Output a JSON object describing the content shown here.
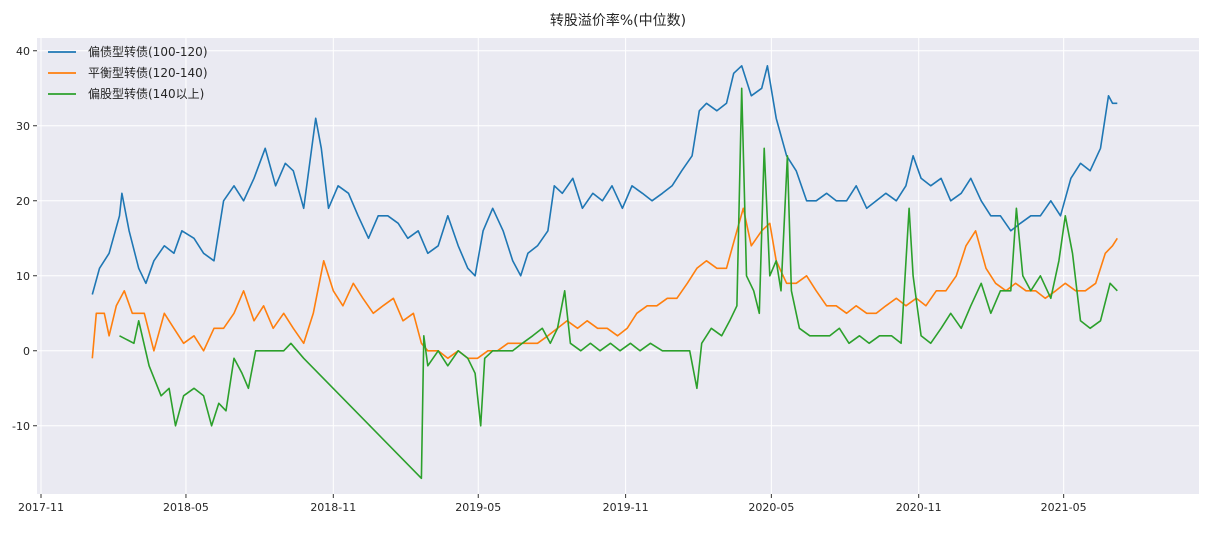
{
  "chart_data": {
    "type": "line",
    "title": "转股溢价率%(中位数)",
    "xlabel": "",
    "ylabel": "",
    "x_unit": "days since 2018-01-01",
    "xlim": [
      -66,
      1385
    ],
    "ylim": [
      -19.1,
      41.7
    ],
    "grid": true,
    "legend_position": "top-left",
    "x_ticks": [
      {
        "label": "2017-11",
        "day": -61
      },
      {
        "label": "2018-05",
        "day": 120
      },
      {
        "label": "2018-11",
        "day": 304
      },
      {
        "label": "2019-05",
        "day": 485
      },
      {
        "label": "2019-11",
        "day": 669
      },
      {
        "label": "2020-05",
        "day": 851
      },
      {
        "label": "2020-11",
        "day": 1035
      },
      {
        "label": "2021-05",
        "day": 1216
      }
    ],
    "y_ticks": [
      -10,
      0,
      10,
      20,
      30,
      40
    ],
    "series": [
      {
        "name": "偏债型转债(100-120)",
        "color": "#1f77b4",
        "points": [
          [
            3,
            7.5
          ],
          [
            12,
            11
          ],
          [
            24,
            13
          ],
          [
            37,
            18
          ],
          [
            40,
            21
          ],
          [
            49,
            16
          ],
          [
            61,
            11
          ],
          [
            70,
            9
          ],
          [
            80,
            12
          ],
          [
            93,
            14
          ],
          [
            105,
            13
          ],
          [
            115,
            16
          ],
          [
            130,
            15
          ],
          [
            142,
            13
          ],
          [
            155,
            12
          ],
          [
            167,
            20
          ],
          [
            180,
            22
          ],
          [
            192,
            20
          ],
          [
            205,
            23
          ],
          [
            219,
            27
          ],
          [
            232,
            22
          ],
          [
            244,
            25
          ],
          [
            254,
            24
          ],
          [
            267,
            19
          ],
          [
            282,
            31
          ],
          [
            289,
            27
          ],
          [
            298,
            19
          ],
          [
            310,
            22
          ],
          [
            323,
            21
          ],
          [
            335,
            18
          ],
          [
            348,
            15
          ],
          [
            360,
            18
          ],
          [
            372,
            18
          ],
          [
            385,
            17
          ],
          [
            397,
            15
          ],
          [
            410,
            16
          ],
          [
            422,
            13
          ],
          [
            435,
            14
          ],
          [
            447,
            18
          ],
          [
            460,
            14
          ],
          [
            472,
            11
          ],
          [
            481,
            10
          ],
          [
            491,
            16
          ],
          [
            503,
            19
          ],
          [
            516,
            16
          ],
          [
            528,
            12
          ],
          [
            538,
            10
          ],
          [
            547,
            13
          ],
          [
            559,
            14
          ],
          [
            572,
            16
          ],
          [
            580,
            22
          ],
          [
            590,
            21
          ],
          [
            603,
            23
          ],
          [
            615,
            19
          ],
          [
            628,
            21
          ],
          [
            640,
            20
          ],
          [
            652,
            22
          ],
          [
            665,
            19
          ],
          [
            677,
            22
          ],
          [
            690,
            21
          ],
          [
            702,
            20
          ],
          [
            715,
            21
          ],
          [
            727,
            22
          ],
          [
            739,
            24
          ],
          [
            752,
            26
          ],
          [
            761,
            32
          ],
          [
            770,
            33
          ],
          [
            783,
            32
          ],
          [
            795,
            33
          ],
          [
            804,
            37
          ],
          [
            814,
            38
          ],
          [
            826,
            34
          ],
          [
            839,
            35
          ],
          [
            846,
            38
          ],
          [
            857,
            31
          ],
          [
            870,
            26
          ],
          [
            882,
            24
          ],
          [
            895,
            20
          ],
          [
            907,
            20
          ],
          [
            920,
            21
          ],
          [
            932,
            20
          ],
          [
            945,
            20
          ],
          [
            957,
            22
          ],
          [
            970,
            19
          ],
          [
            982,
            20
          ],
          [
            994,
            21
          ],
          [
            1007,
            20
          ],
          [
            1019,
            22
          ],
          [
            1028,
            26
          ],
          [
            1038,
            23
          ],
          [
            1050,
            22
          ],
          [
            1063,
            23
          ],
          [
            1075,
            20
          ],
          [
            1088,
            21
          ],
          [
            1100,
            23
          ],
          [
            1113,
            20
          ],
          [
            1125,
            18
          ],
          [
            1137,
            18
          ],
          [
            1150,
            16
          ],
          [
            1162,
            17
          ],
          [
            1175,
            18
          ],
          [
            1187,
            18
          ],
          [
            1200,
            20
          ],
          [
            1212,
            18
          ],
          [
            1225,
            23
          ],
          [
            1237,
            25
          ],
          [
            1249,
            24
          ],
          [
            1262,
            27
          ],
          [
            1272,
            34
          ],
          [
            1277,
            33
          ],
          [
            1283,
            33
          ]
        ]
      },
      {
        "name": "平衡型转债(120-140)",
        "color": "#ff7f0e",
        "points": [
          [
            3,
            -1
          ],
          [
            8,
            5
          ],
          [
            18,
            5
          ],
          [
            24,
            2
          ],
          [
            33,
            6
          ],
          [
            43,
            8
          ],
          [
            53,
            5
          ],
          [
            68,
            5
          ],
          [
            80,
            0
          ],
          [
            93,
            5
          ],
          [
            105,
            3
          ],
          [
            117,
            1
          ],
          [
            130,
            2
          ],
          [
            142,
            0
          ],
          [
            155,
            3
          ],
          [
            167,
            3
          ],
          [
            180,
            5
          ],
          [
            192,
            8
          ],
          [
            205,
            4
          ],
          [
            217,
            6
          ],
          [
            229,
            3
          ],
          [
            242,
            5
          ],
          [
            254,
            3
          ],
          [
            267,
            1
          ],
          [
            279,
            5
          ],
          [
            292,
            12
          ],
          [
            304,
            8
          ],
          [
            316,
            6
          ],
          [
            329,
            9
          ],
          [
            341,
            7
          ],
          [
            354,
            5
          ],
          [
            366,
            6
          ],
          [
            379,
            7
          ],
          [
            391,
            4
          ],
          [
            404,
            5
          ],
          [
            414,
            1
          ],
          [
            422,
            0
          ],
          [
            435,
            0
          ],
          [
            447,
            -1
          ],
          [
            460,
            0
          ],
          [
            472,
            -1
          ],
          [
            484,
            -1
          ],
          [
            497,
            0
          ],
          [
            509,
            0
          ],
          [
            522,
            1
          ],
          [
            534,
            1
          ],
          [
            547,
            1
          ],
          [
            559,
            1
          ],
          [
            572,
            2
          ],
          [
            584,
            3
          ],
          [
            596,
            4
          ],
          [
            609,
            3
          ],
          [
            621,
            4
          ],
          [
            634,
            3
          ],
          [
            646,
            3
          ],
          [
            659,
            2
          ],
          [
            671,
            3
          ],
          [
            683,
            5
          ],
          [
            696,
            6
          ],
          [
            708,
            6
          ],
          [
            721,
            7
          ],
          [
            733,
            7
          ],
          [
            746,
            9
          ],
          [
            758,
            11
          ],
          [
            770,
            12
          ],
          [
            783,
            11
          ],
          [
            795,
            11
          ],
          [
            808,
            16
          ],
          [
            816,
            19
          ],
          [
            826,
            14
          ],
          [
            839,
            16
          ],
          [
            849,
            17
          ],
          [
            857,
            12
          ],
          [
            870,
            9
          ],
          [
            882,
            9
          ],
          [
            895,
            10
          ],
          [
            907,
            8
          ],
          [
            920,
            6
          ],
          [
            932,
            6
          ],
          [
            945,
            5
          ],
          [
            957,
            6
          ],
          [
            970,
            5
          ],
          [
            982,
            5
          ],
          [
            994,
            6
          ],
          [
            1007,
            7
          ],
          [
            1019,
            6
          ],
          [
            1032,
            7
          ],
          [
            1044,
            6
          ],
          [
            1057,
            8
          ],
          [
            1069,
            8
          ],
          [
            1082,
            10
          ],
          [
            1094,
            14
          ],
          [
            1106,
            16
          ],
          [
            1119,
            11
          ],
          [
            1131,
            9
          ],
          [
            1144,
            8
          ],
          [
            1156,
            9
          ],
          [
            1169,
            8
          ],
          [
            1181,
            8
          ],
          [
            1193,
            7
          ],
          [
            1206,
            8
          ],
          [
            1218,
            9
          ],
          [
            1231,
            8
          ],
          [
            1243,
            8
          ],
          [
            1256,
            9
          ],
          [
            1268,
            13
          ],
          [
            1277,
            14
          ],
          [
            1283,
            15
          ]
        ]
      },
      {
        "name": "偏股型转债(140以上)",
        "color": "#2ca02c",
        "points": [
          [
            37,
            2
          ],
          [
            55,
            1
          ],
          [
            61,
            4
          ],
          [
            74,
            -2
          ],
          [
            89,
            -6
          ],
          [
            99,
            -5
          ],
          [
            107,
            -10
          ],
          [
            117,
            -6
          ],
          [
            130,
            -5
          ],
          [
            142,
            -6
          ],
          [
            152,
            -10
          ],
          [
            161,
            -7
          ],
          [
            170,
            -8
          ],
          [
            180,
            -1
          ],
          [
            190,
            -3
          ],
          [
            198,
            -5
          ],
          [
            207,
            0
          ],
          [
            217,
            0
          ],
          [
            229,
            0
          ],
          [
            242,
            0
          ],
          [
            251,
            1
          ],
          [
            267,
            -1
          ],
          [
            414,
            -17
          ],
          [
            417,
            2
          ],
          [
            422,
            -2
          ],
          [
            435,
            0
          ],
          [
            447,
            -2
          ],
          [
            460,
            0
          ],
          [
            472,
            -1
          ],
          [
            481,
            -3
          ],
          [
            488,
            -10
          ],
          [
            493,
            -1
          ],
          [
            503,
            0
          ],
          [
            516,
            0
          ],
          [
            528,
            0
          ],
          [
            540,
            1
          ],
          [
            553,
            2
          ],
          [
            565,
            3
          ],
          [
            575,
            1
          ],
          [
            584,
            3
          ],
          [
            593,
            8
          ],
          [
            600,
            1
          ],
          [
            613,
            0
          ],
          [
            625,
            1
          ],
          [
            637,
            0
          ],
          [
            650,
            1
          ],
          [
            662,
            0
          ],
          [
            675,
            1
          ],
          [
            687,
            0
          ],
          [
            700,
            1
          ],
          [
            715,
            0
          ],
          [
            733,
            0
          ],
          [
            749,
            0
          ],
          [
            758,
            -5
          ],
          [
            764,
            1
          ],
          [
            776,
            3
          ],
          [
            789,
            2
          ],
          [
            799,
            4
          ],
          [
            808,
            6
          ],
          [
            814,
            35
          ],
          [
            820,
            10
          ],
          [
            829,
            8
          ],
          [
            836,
            5
          ],
          [
            842,
            27
          ],
          [
            849,
            10
          ],
          [
            857,
            12
          ],
          [
            863,
            8
          ],
          [
            871,
            26
          ],
          [
            876,
            8
          ],
          [
            886,
            3
          ],
          [
            899,
            2
          ],
          [
            911,
            2
          ],
          [
            924,
            2
          ],
          [
            936,
            3
          ],
          [
            948,
            1
          ],
          [
            961,
            2
          ],
          [
            973,
            1
          ],
          [
            986,
            2
          ],
          [
            1001,
            2
          ],
          [
            1013,
            1
          ],
          [
            1023,
            19
          ],
          [
            1028,
            10
          ],
          [
            1038,
            2
          ],
          [
            1050,
            1
          ],
          [
            1063,
            3
          ],
          [
            1075,
            5
          ],
          [
            1088,
            3
          ],
          [
            1100,
            6
          ],
          [
            1113,
            9
          ],
          [
            1125,
            5
          ],
          [
            1137,
            8
          ],
          [
            1150,
            8
          ],
          [
            1157,
            19
          ],
          [
            1165,
            10
          ],
          [
            1175,
            8
          ],
          [
            1187,
            10
          ],
          [
            1200,
            7
          ],
          [
            1210,
            12
          ],
          [
            1218,
            18
          ],
          [
            1227,
            13
          ],
          [
            1237,
            4
          ],
          [
            1249,
            3
          ],
          [
            1262,
            4
          ],
          [
            1274,
            9
          ],
          [
            1283,
            8
          ]
        ]
      }
    ]
  }
}
